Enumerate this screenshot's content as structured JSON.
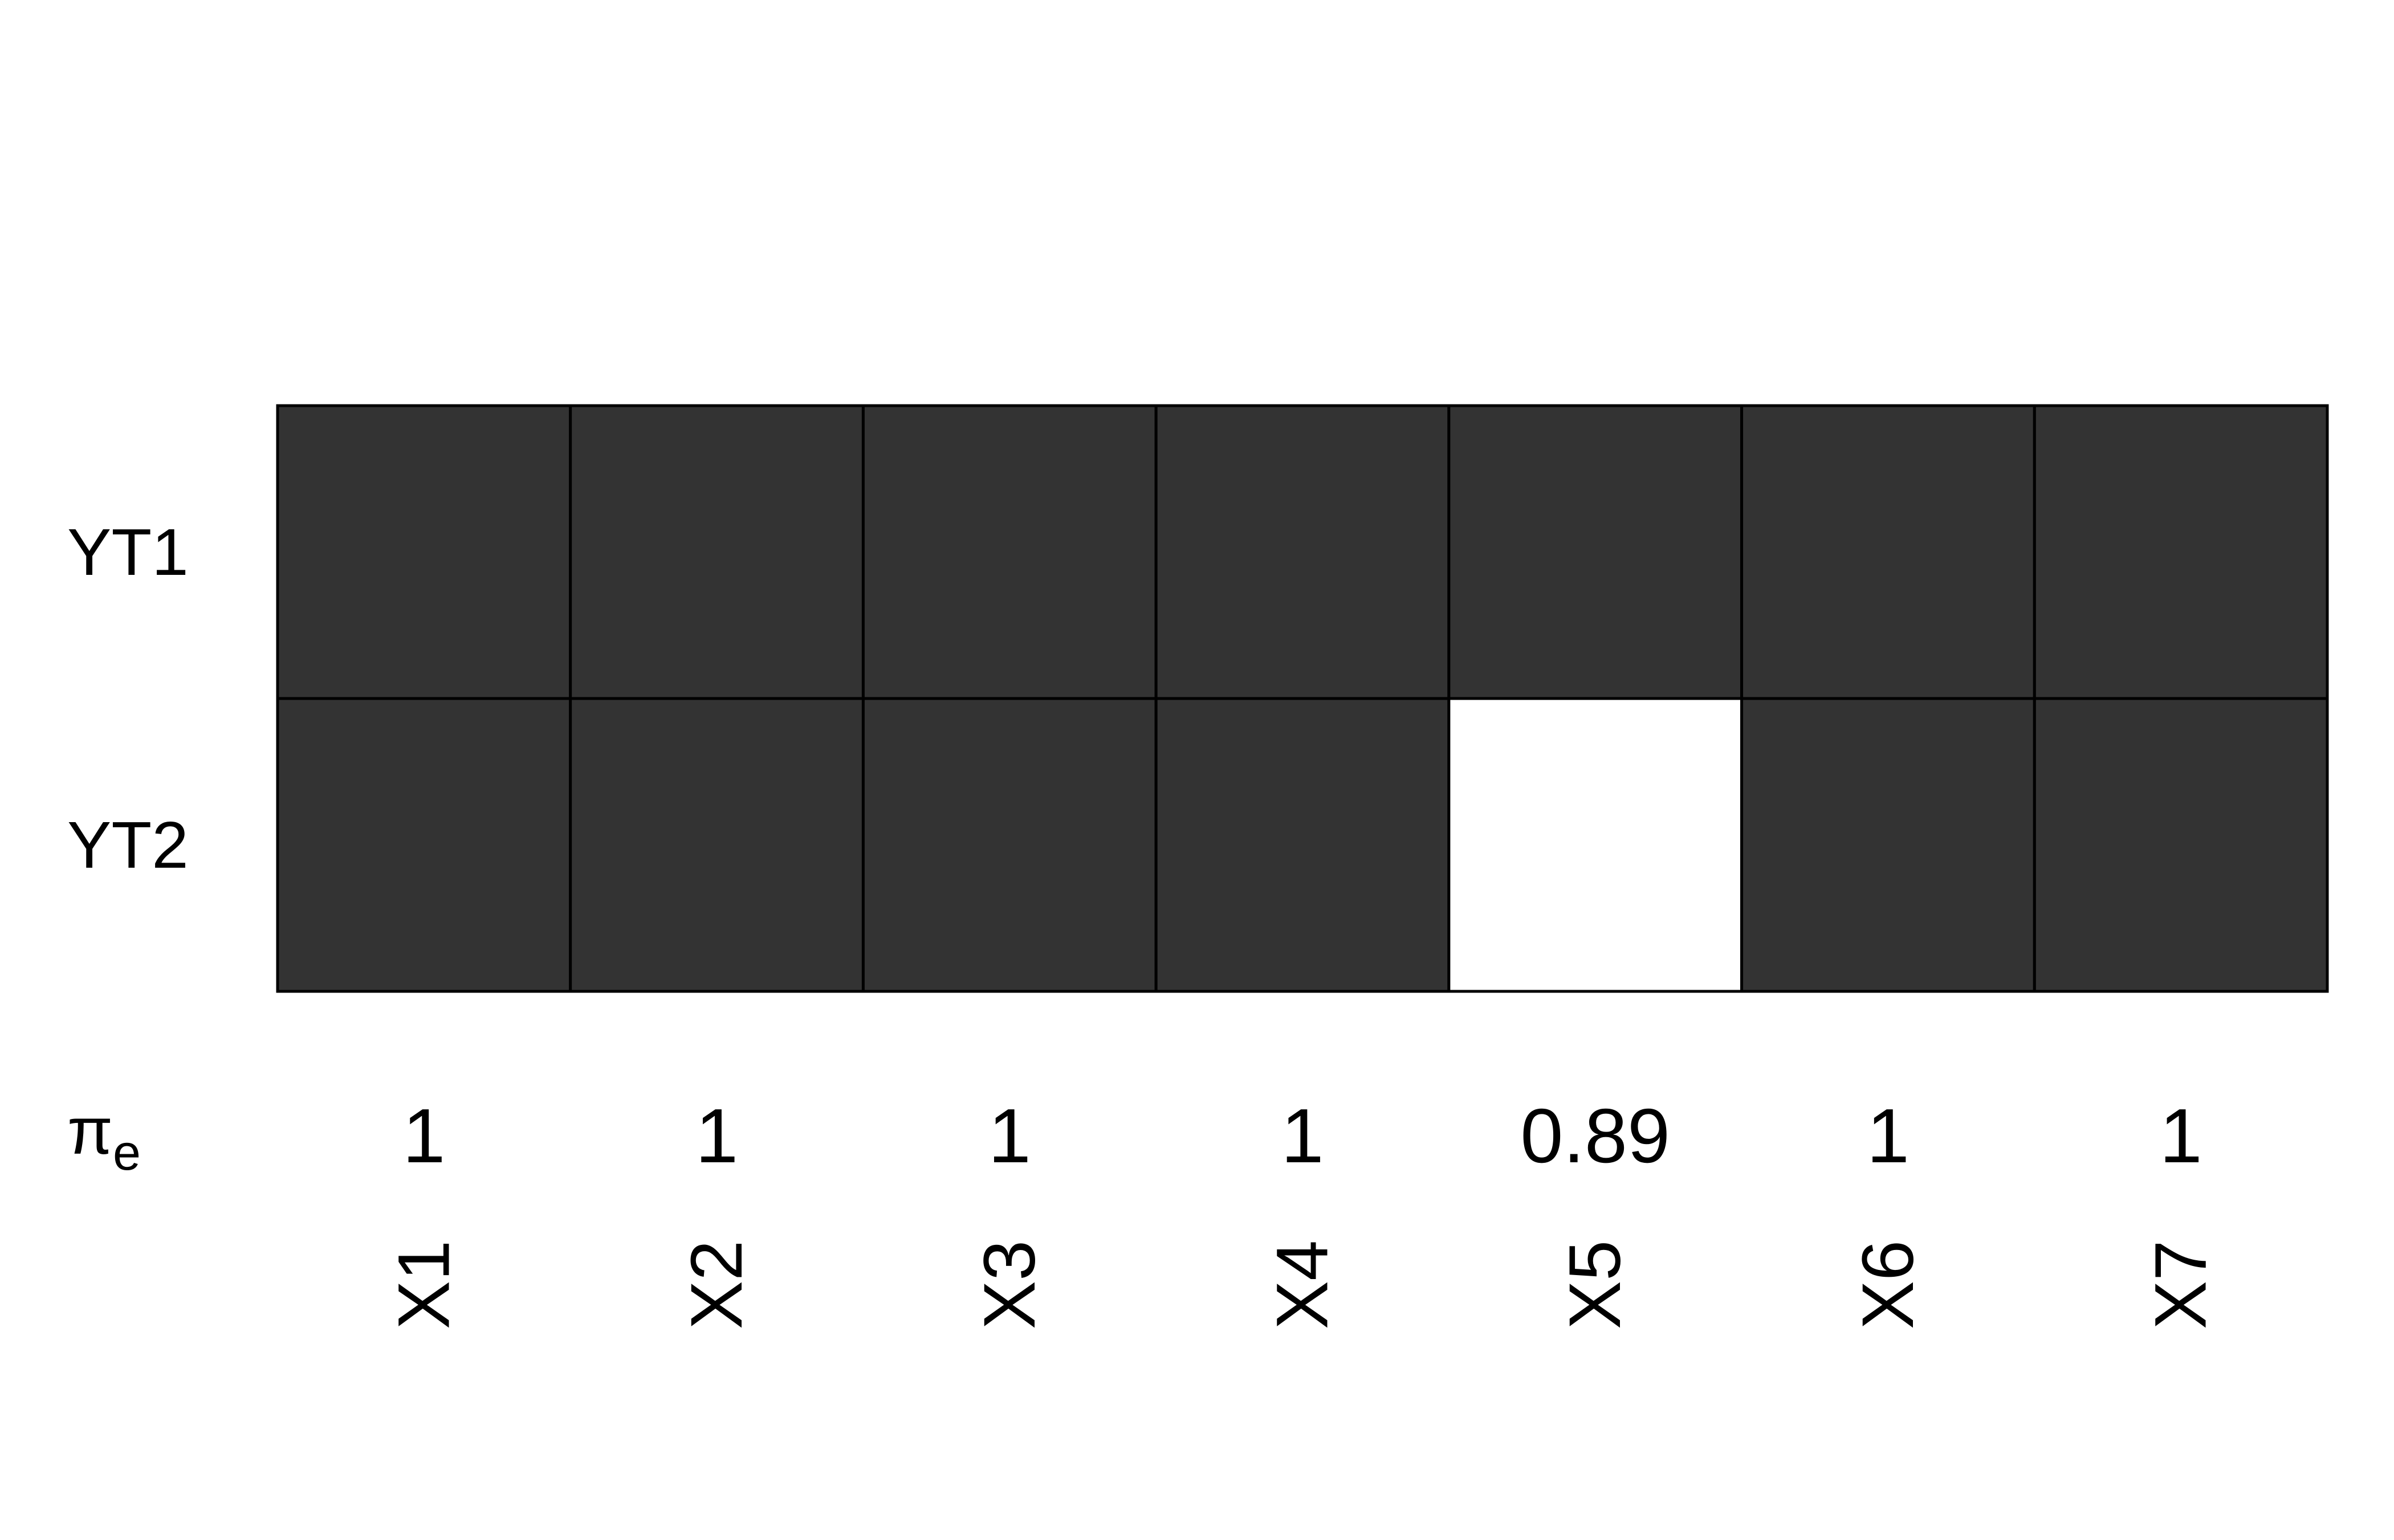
{
  "chart_data": {
    "type": "heatmap",
    "rows": [
      "YT1",
      "YT2"
    ],
    "columns": [
      "X1",
      "X2",
      "X3",
      "X4",
      "X5",
      "X6",
      "X7"
    ],
    "values": [
      [
        1,
        1,
        1,
        1,
        1,
        1,
        1
      ],
      [
        1,
        1,
        1,
        1,
        0,
        1,
        1
      ]
    ],
    "pi_label": {
      "symbol": "π",
      "subscript": "e"
    },
    "pi_values": [
      "1",
      "1",
      "1",
      "1",
      "0.89",
      "1",
      "1"
    ],
    "colors": {
      "selected": "#333333",
      "not_selected": "#ffffff",
      "border": "#000000"
    },
    "grid": true,
    "legend": "none"
  }
}
